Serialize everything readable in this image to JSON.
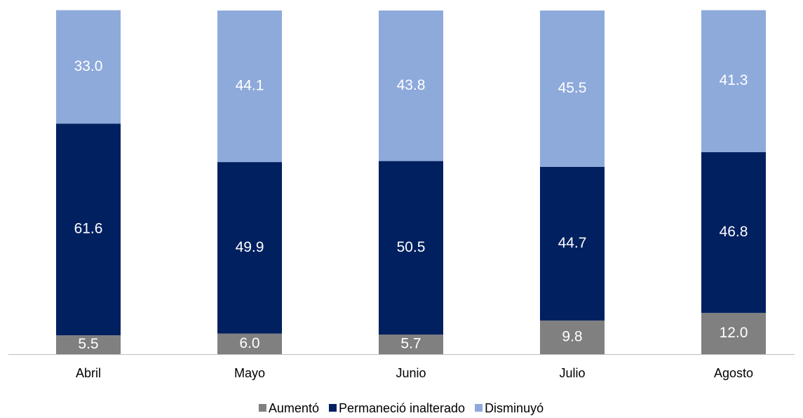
{
  "chart_data": {
    "type": "stacked_bar",
    "categories": [
      "Abril",
      "Mayo",
      "Junio",
      "Julio",
      "Agosto"
    ],
    "series": [
      {
        "name": "Aumentó",
        "color": "#808080",
        "values": [
          5.5,
          6,
          5.7,
          9.8,
          12
        ],
        "value_labels": [
          "5.5",
          "6.0",
          "5.7",
          "9.8",
          "12.0"
        ]
      },
      {
        "name": "Permaneció inalterado",
        "color": "#002060",
        "values": [
          61.6,
          49.9,
          50.5,
          44.7,
          46.8
        ],
        "value_labels": [
          "61.6",
          "49.9",
          "50.5",
          "44.7",
          "46.8"
        ]
      },
      {
        "name": "Disminuyó",
        "color": "#8eaadb",
        "values": [
          33,
          44.1,
          43.8,
          45.5,
          41.3
        ],
        "value_labels": [
          "33.0",
          "44.1",
          "43.8",
          "45.5",
          "41.3"
        ]
      }
    ],
    "ylim": [
      0,
      100
    ],
    "legend": "bottom"
  }
}
